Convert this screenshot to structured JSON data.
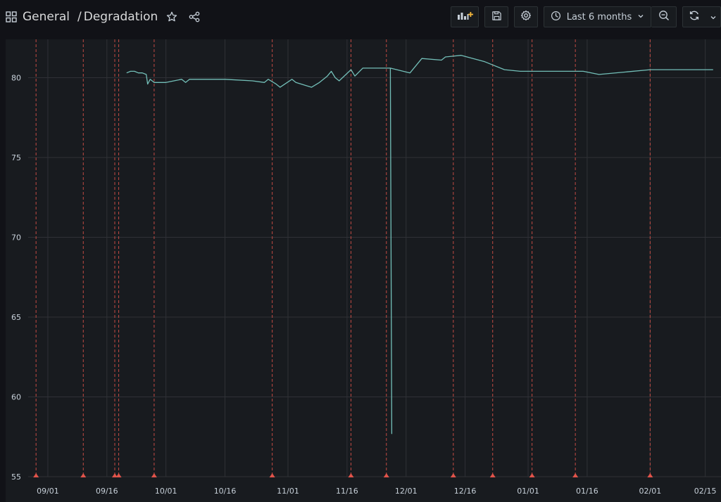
{
  "header": {
    "folder": "General",
    "separator": "/",
    "title": "Degradation"
  },
  "toolbar": {
    "time_range": "Last 6 months",
    "icons": [
      "grid-icon",
      "star-icon",
      "share-icon",
      "add-panel-icon",
      "save-icon",
      "gear-icon",
      "clock-icon",
      "chevron-down-icon",
      "zoom-out-icon",
      "refresh-icon"
    ]
  },
  "colors": {
    "line": "#73bfb8",
    "annotation": "#e0534a",
    "grid": "#2f3136",
    "axis_text": "#c7d0d9"
  },
  "chart_data": {
    "type": "line",
    "x_tick_labels": [
      "09/01",
      "09/16",
      "10/01",
      "10/16",
      "11/01",
      "11/16",
      "12/01",
      "12/16",
      "01/01",
      "01/16",
      "02/01",
      "02/15"
    ],
    "y_tick_labels": [
      "80",
      "75",
      "70",
      "65",
      "60",
      "55"
    ],
    "ylim": [
      55,
      82.4
    ],
    "xlim": [
      "2022-08-27",
      "2023-02-19"
    ],
    "grid": true,
    "series": [
      {
        "x": [
          "2022-09-21",
          "2022-09-22",
          "2022-09-23",
          "2022-09-24",
          "2022-09-25",
          "2022-09-26",
          "2022-09-26",
          "2022-09-27",
          "2022-09-28",
          "2022-09-30",
          "2022-10-01",
          "2022-10-03",
          "2022-10-05",
          "2022-10-06",
          "2022-10-07",
          "2022-10-16",
          "2022-10-23",
          "2022-10-26",
          "2022-10-27",
          "2022-10-29",
          "2022-10-30",
          "2022-11-02",
          "2022-11-03",
          "2022-11-07",
          "2022-11-09",
          "2022-11-11",
          "2022-11-12",
          "2022-11-13",
          "2022-11-14",
          "2022-11-17",
          "2022-11-18",
          "2022-11-20",
          "2022-11-27",
          "2022-11-27",
          "2022-11-27",
          "2022-12-02",
          "2022-12-05",
          "2022-12-10",
          "2022-12-11",
          "2022-12-15",
          "2022-12-21",
          "2022-12-26",
          "2022-12-30",
          "2023-01-03",
          "2023-01-13",
          "2023-01-15",
          "2023-01-19",
          "2023-02-01",
          "2023-02-14",
          "2023-02-17"
        ],
        "values": [
          80.3,
          80.4,
          80.4,
          80.3,
          80.3,
          80.2,
          79.6,
          79.9,
          79.7,
          79.7,
          79.7,
          79.8,
          79.9,
          79.7,
          79.9,
          79.9,
          79.8,
          79.7,
          79.9,
          79.6,
          79.4,
          79.9,
          79.7,
          79.4,
          79.7,
          80.1,
          80.4,
          80.0,
          79.8,
          80.5,
          80.1,
          80.6,
          80.6,
          57.7,
          80.6,
          80.3,
          81.2,
          81.1,
          81.3,
          81.4,
          81.0,
          80.5,
          80.4,
          80.4,
          80.4,
          80.4,
          80.2,
          80.5,
          80.5,
          80.5
        ]
      }
    ],
    "annotations": [
      "2022-08-29",
      "2022-09-10",
      "2022-09-18",
      "2022-09-19",
      "2022-09-28",
      "2022-10-28",
      "2022-11-17",
      "2022-11-26",
      "2022-12-13",
      "2022-12-23",
      "2023-01-02",
      "2023-01-13",
      "2023-02-01"
    ]
  }
}
